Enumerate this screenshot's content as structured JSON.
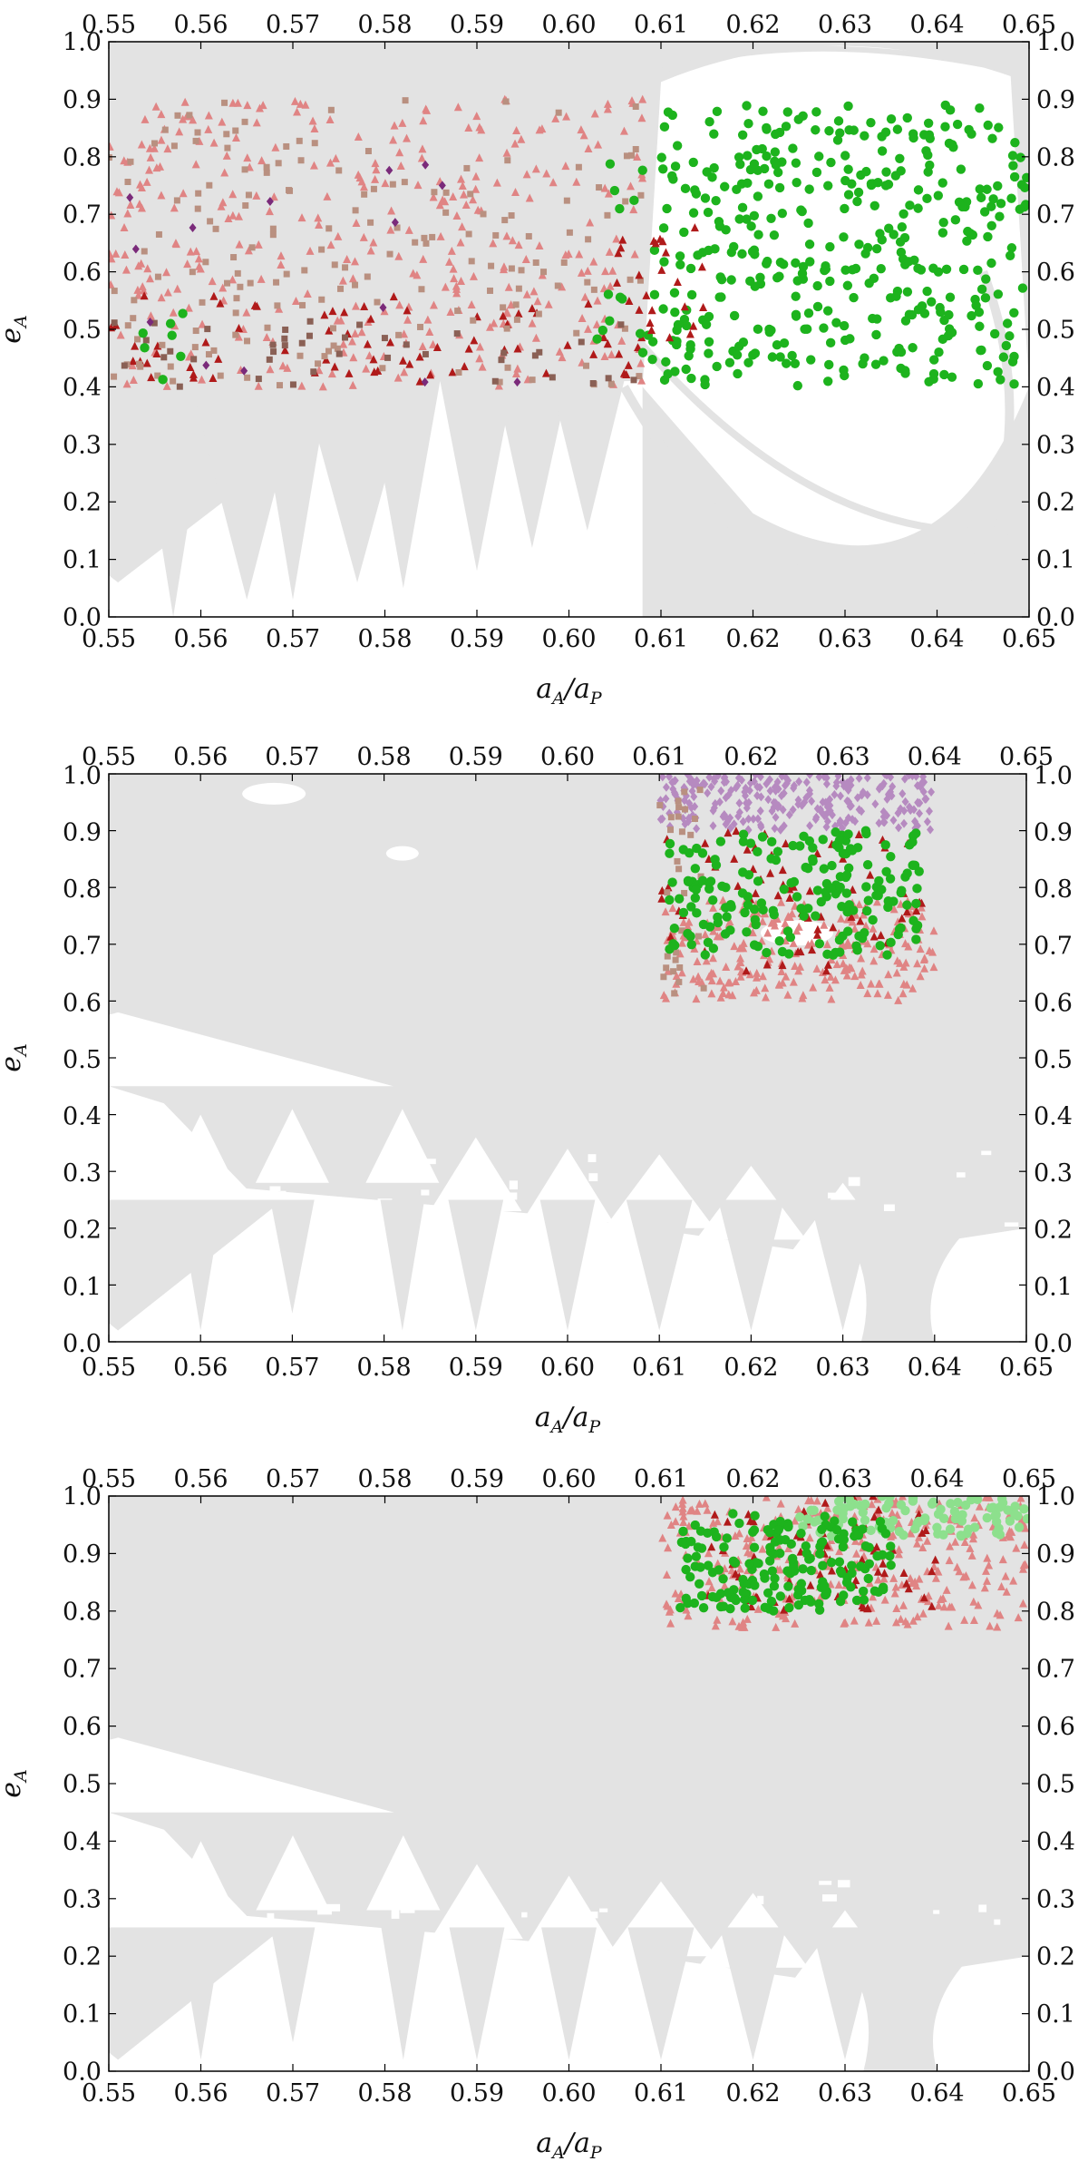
{
  "colors": {
    "background_region": "#e3e3e3",
    "green": "#1db31d",
    "green_light": "#8de08d",
    "dark_red": "#b01a1a",
    "light_red": "#e08484",
    "tan": "#b99080",
    "brown": "#8a6055",
    "purple_dark": "#7a2a7a",
    "purple_light": "#b68ac0"
  },
  "chart_data": [
    {
      "type": "scatter",
      "xlabel_main": "a",
      "xlabel_sub_1": "A",
      "xlabel_slash": "/a",
      "xlabel_sub_2": "P",
      "ylabel_main": "e",
      "ylabel_sub": "A",
      "xlim": [
        0.55,
        0.65
      ],
      "ylim": [
        0.0,
        1.0
      ],
      "x_ticks": [
        "0.55",
        "0.56",
        "0.57",
        "0.58",
        "0.59",
        "0.60",
        "0.61",
        "0.62",
        "0.63",
        "0.64",
        "0.65"
      ],
      "y_ticks": [
        "0.0",
        "0.1",
        "0.2",
        "0.3",
        "0.4",
        "0.5",
        "0.6",
        "0.7",
        "0.8",
        "0.9",
        "1.0"
      ],
      "ticks_on_all_sides": true,
      "grid": false,
      "series": [
        {
          "marker": "triangle",
          "color": "light_red",
          "region": {
            "x": [
              0.55,
              0.608
            ],
            "y": [
              0.4,
              0.9
            ]
          },
          "count": 360
        },
        {
          "marker": "triangle",
          "color": "dark_red",
          "region": {
            "x": [
              0.55,
              0.608
            ],
            "y": [
              0.4,
              0.56
            ]
          },
          "count": 70
        },
        {
          "marker": "square",
          "color": "tan",
          "region": {
            "x": [
              0.55,
              0.608
            ],
            "y": [
              0.4,
              0.9
            ]
          },
          "count": 170
        },
        {
          "marker": "square",
          "color": "brown",
          "region": {
            "x": [
              0.55,
              0.608
            ],
            "y": [
              0.4,
              0.52
            ]
          },
          "count": 40
        },
        {
          "marker": "diamond",
          "color": "purple_dark",
          "region": {
            "x": [
              0.55,
              0.608
            ],
            "y": [
              0.4,
              0.88
            ]
          },
          "count": 14
        },
        {
          "marker": "circle",
          "color": "green",
          "region": {
            "x": [
              0.61,
              0.65
            ],
            "y": [
              0.4,
              0.89
            ]
          },
          "count": 400
        },
        {
          "marker": "circle",
          "color": "green",
          "region": {
            "x": [
              0.603,
              0.61
            ],
            "y": [
              0.42,
              0.8
            ]
          },
          "count": 18
        },
        {
          "marker": "circle",
          "color": "green",
          "region": {
            "x": [
              0.553,
              0.559
            ],
            "y": [
              0.41,
              0.55
            ]
          },
          "count": 7
        },
        {
          "marker": "triangle",
          "color": "dark_red",
          "region": {
            "x": [
              0.605,
              0.615
            ],
            "y": [
              0.42,
              0.7
            ]
          },
          "count": 25
        }
      ]
    },
    {
      "type": "scatter",
      "xlabel_main": "a",
      "xlabel_sub_1": "A",
      "xlabel_slash": "/a",
      "xlabel_sub_2": "P",
      "ylabel_main": "e",
      "ylabel_sub": "A",
      "xlim": [
        0.55,
        0.65
      ],
      "ylim": [
        0.0,
        1.0
      ],
      "x_ticks": [
        "0.55",
        "0.56",
        "0.57",
        "0.58",
        "0.59",
        "0.60",
        "0.61",
        "0.62",
        "0.63",
        "0.64",
        "0.65"
      ],
      "y_ticks": [
        "0.0",
        "0.1",
        "0.2",
        "0.3",
        "0.4",
        "0.5",
        "0.6",
        "0.7",
        "0.8",
        "0.9",
        "1.0"
      ],
      "ticks_on_all_sides": true,
      "grid": false,
      "series": [
        {
          "marker": "diamond",
          "color": "purple_light",
          "region": {
            "x": [
              0.61,
              0.64
            ],
            "y": [
              0.9,
              1.0
            ]
          },
          "count": 260
        },
        {
          "marker": "triangle",
          "color": "light_red",
          "region": {
            "x": [
              0.61,
              0.64
            ],
            "y": [
              0.6,
              0.78
            ]
          },
          "count": 230
        },
        {
          "marker": "triangle",
          "color": "dark_red",
          "region": {
            "x": [
              0.61,
              0.64
            ],
            "y": [
              0.65,
              0.9
            ]
          },
          "count": 70
        },
        {
          "marker": "square",
          "color": "tan",
          "region": {
            "x": [
              0.61,
              0.615
            ],
            "y": [
              0.6,
              0.98
            ]
          },
          "count": 30
        },
        {
          "marker": "circle",
          "color": "green",
          "region": {
            "x": [
              0.611,
              0.639
            ],
            "y": [
              0.68,
              0.9
            ]
          },
          "count": 190
        }
      ]
    },
    {
      "type": "scatter",
      "xlabel_main": "a",
      "xlabel_sub_1": "A",
      "xlabel_slash": "/a",
      "xlabel_sub_2": "P",
      "ylabel_main": "e",
      "ylabel_sub": "A",
      "xlim": [
        0.55,
        0.65
      ],
      "ylim": [
        0.0,
        1.0
      ],
      "x_ticks": [
        "0.55",
        "0.56",
        "0.57",
        "0.58",
        "0.59",
        "0.60",
        "0.61",
        "0.62",
        "0.63",
        "0.64",
        "0.65"
      ],
      "y_ticks": [
        "0.0",
        "0.1",
        "0.2",
        "0.3",
        "0.4",
        "0.5",
        "0.6",
        "0.7",
        "0.8",
        "0.9",
        "1.0"
      ],
      "ticks_on_all_sides": true,
      "grid": false,
      "series": [
        {
          "marker": "triangle",
          "color": "light_red",
          "region": {
            "x": [
              0.61,
              0.65
            ],
            "y": [
              0.77,
              1.0
            ]
          },
          "count": 320
        },
        {
          "marker": "triangle",
          "color": "dark_red",
          "region": {
            "x": [
              0.615,
              0.64
            ],
            "y": [
              0.8,
              1.0
            ]
          },
          "count": 70
        },
        {
          "marker": "circle",
          "color": "green_light",
          "region": {
            "x": [
              0.625,
              0.65
            ],
            "y": [
              0.93,
              1.0
            ]
          },
          "count": 90
        },
        {
          "marker": "circle",
          "color": "green",
          "region": {
            "x": [
              0.612,
              0.635
            ],
            "y": [
              0.8,
              0.97
            ]
          },
          "count": 180
        }
      ]
    }
  ]
}
